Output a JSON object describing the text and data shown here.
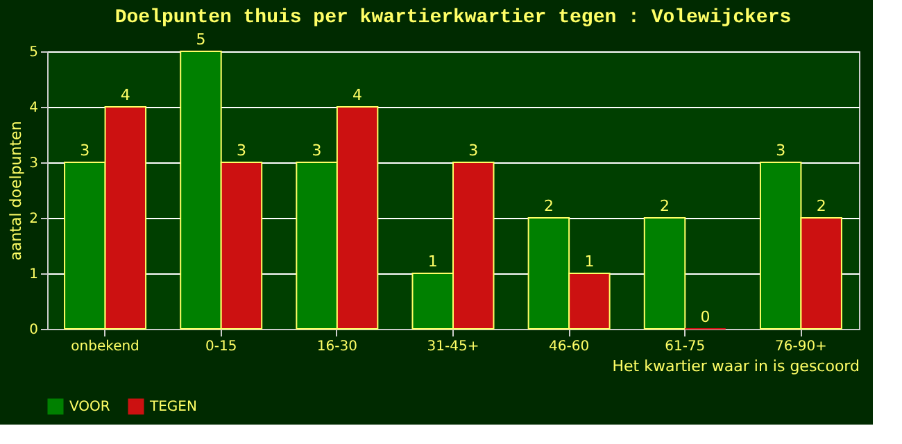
{
  "chart_data": {
    "type": "bar",
    "title": "Doelpunten thuis per kwartierkwartier tegen : Volewijckers",
    "xlabel": "Het kwartier waar in is gescoord",
    "ylabel": "aantal doelpunten",
    "categories": [
      "onbekend",
      "0-15",
      "16-30",
      "31-45+",
      "46-60",
      "61-75",
      "76-90+"
    ],
    "series": [
      {
        "name": "VOOR",
        "color": "#008000",
        "values": [
          3,
          5,
          3,
          1,
          2,
          2,
          3
        ]
      },
      {
        "name": "TEGEN",
        "color": "#cc1111",
        "values": [
          4,
          3,
          4,
          3,
          1,
          0,
          2
        ]
      }
    ],
    "ylim": [
      0,
      5
    ],
    "yticks": [
      0,
      1,
      2,
      3,
      4,
      5
    ],
    "grid": "y",
    "legend": "bottom",
    "data_labels": true
  }
}
